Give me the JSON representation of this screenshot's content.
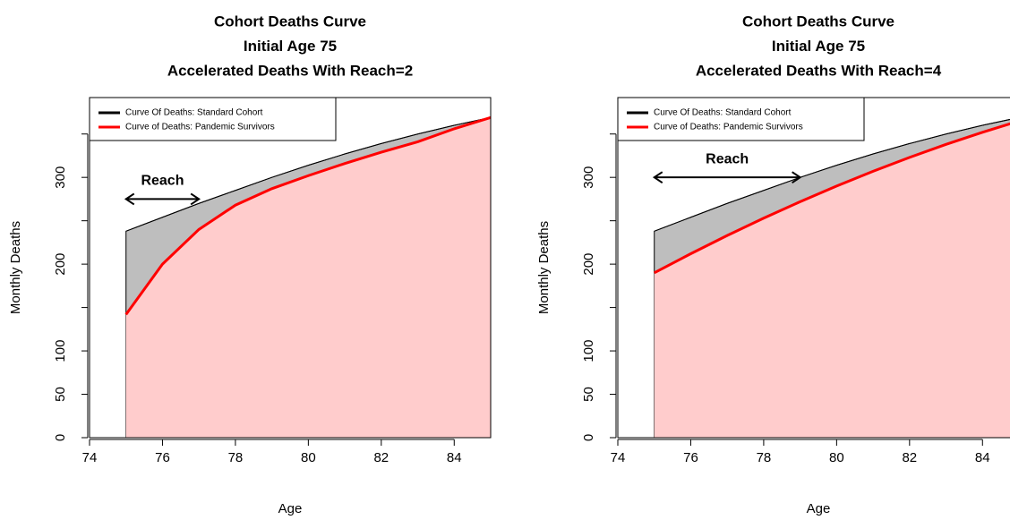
{
  "chart_data": [
    {
      "type": "area-line",
      "title": [
        "Cohort Deaths Curve",
        "Initial Age 75",
        "Accelerated Deaths With Reach=2"
      ],
      "x_label": "Age",
      "y_label": "Monthly Deaths",
      "x": [
        75,
        76,
        77,
        78,
        79,
        80,
        81,
        82,
        83,
        84,
        85
      ],
      "series": [
        {
          "name": "Curve Of Deaths: Standard Cohort",
          "color": "#000000",
          "fill": "#bebebe",
          "values": [
            238,
            254,
            270,
            285,
            300,
            314,
            327,
            339,
            350,
            360,
            369
          ]
        },
        {
          "name": "Curve of Deaths: Pandemic Survivors",
          "color": "#ff0000",
          "fill": "#ffcccc",
          "values": [
            142,
            200,
            240,
            268,
            287,
            302,
            316,
            329,
            341,
            356,
            369
          ]
        }
      ],
      "annotation": {
        "text": "Reach",
        "x0": 75,
        "x1": 77,
        "y": 275
      },
      "xlim": [
        74,
        85
      ],
      "ylim": [
        0,
        392
      ],
      "xticks": [
        74,
        76,
        78,
        80,
        82,
        84
      ],
      "yticks": [
        0,
        50,
        100,
        {
          "value": 150,
          "label": null
        },
        200,
        {
          "value": 250,
          "label": null
        },
        300,
        {
          "value": 350,
          "label": null
        }
      ],
      "legend": "topleft"
    },
    {
      "type": "area-line",
      "title": [
        "Cohort Deaths Curve",
        "Initial Age 75",
        "Accelerated Deaths With Reach=4"
      ],
      "x_label": "Age",
      "y_label": "Monthly Deaths",
      "x": [
        75,
        76,
        77,
        78,
        79,
        80,
        81,
        82,
        83,
        84,
        85
      ],
      "series": [
        {
          "name": "Curve Of Deaths: Standard Cohort",
          "color": "#000000",
          "fill": "#bebebe",
          "values": [
            238,
            254,
            270,
            285,
            300,
            314,
            327,
            339,
            350,
            360,
            369
          ]
        },
        {
          "name": "Curve of Deaths: Pandemic Survivors",
          "color": "#ff0000",
          "fill": "#ffcccc",
          "values": [
            190,
            212,
            233,
            253,
            272,
            290,
            307,
            323,
            338,
            352,
            365
          ]
        }
      ],
      "annotation": {
        "text": "Reach",
        "x0": 75,
        "x1": 79,
        "y": 300
      },
      "xlim": [
        74,
        85
      ],
      "ylim": [
        0,
        392
      ],
      "xticks": [
        74,
        76,
        78,
        80,
        82,
        84
      ],
      "yticks": [
        0,
        50,
        100,
        {
          "value": 150,
          "label": null
        },
        200,
        {
          "value": 250,
          "label": null
        },
        300,
        {
          "value": 350,
          "label": null
        }
      ],
      "legend": "topleft"
    }
  ]
}
